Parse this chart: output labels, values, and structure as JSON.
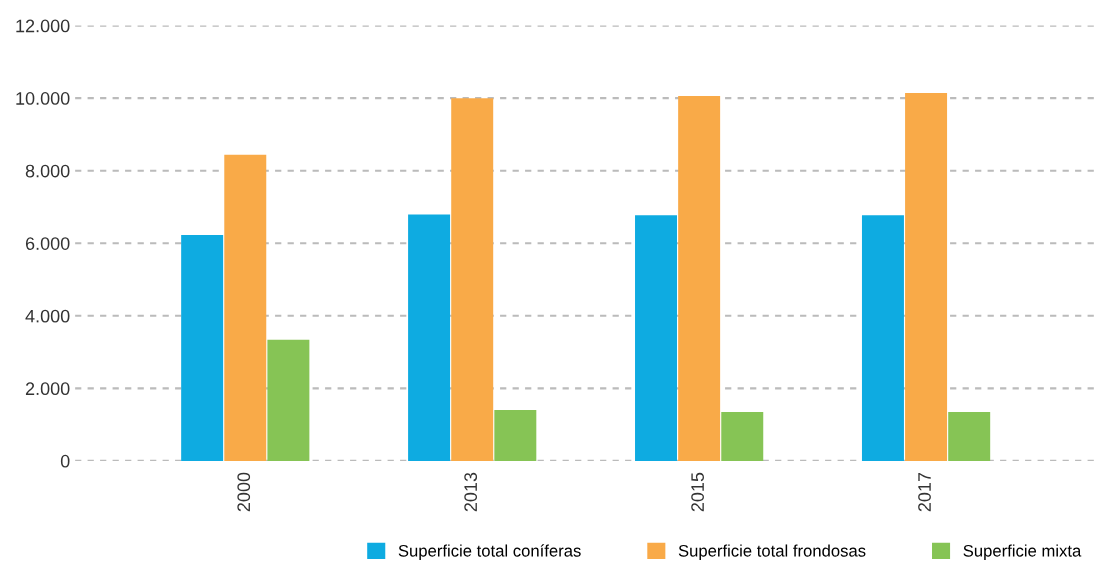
{
  "chart_data": {
    "type": "bar",
    "categories": [
      "2000",
      "2013",
      "2015",
      "2017"
    ],
    "series": [
      {
        "name": "Superficie total coníferas",
        "color": "#0eabe1",
        "values": [
          6230,
          6790,
          6770,
          6770
        ]
      },
      {
        "name": "Superficie total frondosas",
        "color": "#f9aa48",
        "values": [
          8440,
          10000,
          10060,
          10140
        ]
      },
      {
        "name": "Superficie mixta",
        "color": "#86c455",
        "values": [
          3340,
          1400,
          1350,
          1350
        ]
      }
    ],
    "ylim": [
      0,
      12000
    ],
    "yticks": [
      {
        "value": 0,
        "label": "0"
      },
      {
        "value": 2000,
        "label": "2.000"
      },
      {
        "value": 4000,
        "label": "4.000"
      },
      {
        "value": 6000,
        "label": "6.000"
      },
      {
        "value": 8000,
        "label": "8.000"
      },
      {
        "value": 10000,
        "label": "10.000"
      },
      {
        "value": 12000,
        "label": "12.000"
      }
    ],
    "grid": "y",
    "legend": "bottom right"
  }
}
